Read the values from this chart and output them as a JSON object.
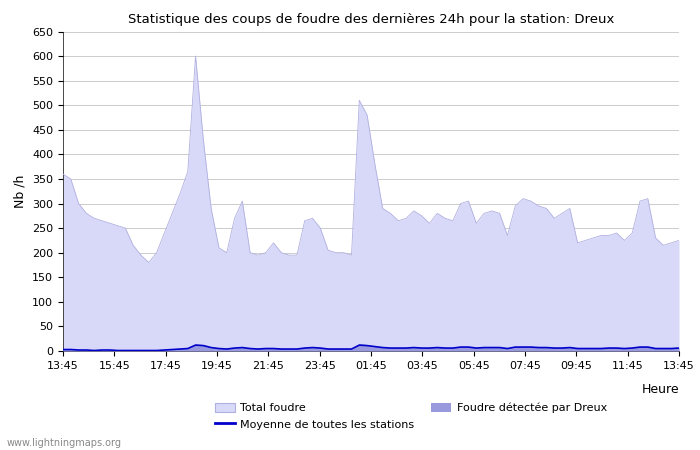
{
  "title": "Statistique des coups de foudre des dernières 24h pour la station: Dreux",
  "ylabel": "Nb /h",
  "xlabel": "Heure",
  "watermark": "www.lightningmaps.org",
  "ylim": [
    0,
    650
  ],
  "yticks": [
    0,
    50,
    100,
    150,
    200,
    250,
    300,
    350,
    400,
    450,
    500,
    550,
    600,
    650
  ],
  "xtick_labels": [
    "13:45",
    "15:45",
    "17:45",
    "19:45",
    "21:45",
    "23:45",
    "01:45",
    "03:45",
    "05:45",
    "07:45",
    "09:45",
    "11:45",
    "13:45"
  ],
  "legend_total": "Total foudre",
  "legend_moyenne": "Moyenne de toutes les stations",
  "legend_dreux": "Foudre détectée par Dreux",
  "color_total": "#d8d8f8",
  "color_total_edge": "#b0b0e0",
  "color_dreux": "#9999dd",
  "color_moyenne": "#0000cc",
  "bg_color": "#ffffff",
  "grid_color": "#cccccc",
  "total_foudre": [
    360,
    350,
    300,
    280,
    270,
    265,
    260,
    255,
    250,
    215,
    195,
    180,
    200,
    240,
    280,
    320,
    365,
    600,
    430,
    290,
    210,
    200,
    270,
    305,
    200,
    195,
    200,
    220,
    200,
    195,
    195,
    265,
    270,
    250,
    205,
    200,
    200,
    195,
    510,
    480,
    380,
    290,
    280,
    265,
    270,
    285,
    275,
    260,
    280,
    270,
    265,
    300,
    305,
    260,
    280,
    285,
    280,
    235,
    295,
    310,
    305,
    295,
    290,
    270,
    280,
    290,
    220,
    225,
    230,
    235,
    235,
    240,
    225,
    240,
    305,
    310,
    230,
    215,
    220,
    225
  ],
  "dreux_foudre": [
    5,
    4,
    3,
    2,
    2,
    2,
    2,
    2,
    2,
    2,
    1,
    1,
    2,
    3,
    4,
    5,
    7,
    15,
    13,
    8,
    5,
    5,
    7,
    9,
    5,
    5,
    6,
    6,
    5,
    4,
    5,
    7,
    9,
    7,
    5,
    5,
    5,
    4,
    15,
    13,
    10,
    8,
    7,
    7,
    7,
    8,
    7,
    7,
    8,
    7,
    7,
    9,
    9,
    7,
    8,
    8,
    8,
    6,
    9,
    9,
    9,
    8,
    8,
    7,
    7,
    8,
    6,
    6,
    6,
    6,
    7,
    7,
    6,
    7,
    9,
    9,
    6,
    6,
    6,
    7
  ],
  "moyenne_foudre": [
    3,
    3,
    2,
    2,
    1,
    2,
    2,
    1,
    1,
    1,
    1,
    1,
    1,
    2,
    3,
    4,
    5,
    12,
    11,
    7,
    5,
    4,
    6,
    7,
    5,
    4,
    5,
    5,
    4,
    4,
    4,
    6,
    7,
    6,
    4,
    4,
    4,
    4,
    12,
    11,
    9,
    7,
    6,
    6,
    6,
    7,
    6,
    6,
    7,
    6,
    6,
    8,
    8,
    6,
    7,
    7,
    7,
    5,
    8,
    8,
    8,
    7,
    7,
    6,
    6,
    7,
    5,
    5,
    5,
    5,
    6,
    6,
    5,
    6,
    8,
    8,
    5,
    5,
    5,
    6
  ]
}
